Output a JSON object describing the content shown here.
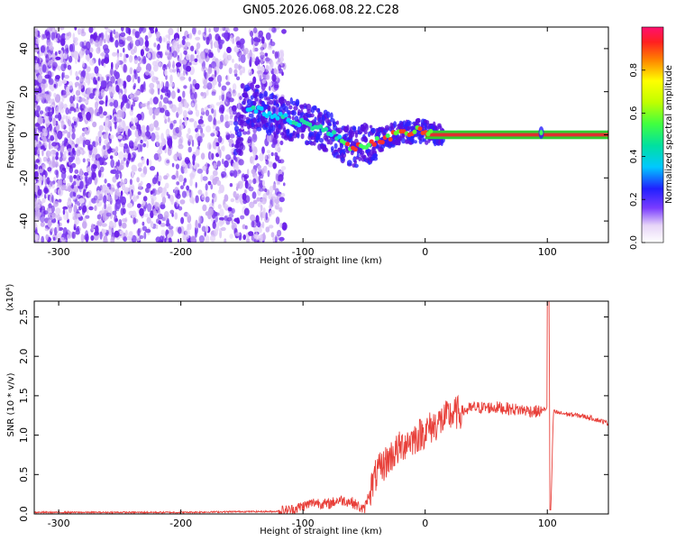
{
  "title": "GN05.2026.068.08.22.C28",
  "chart_data": [
    {
      "type": "heatmap",
      "xlabel": "Height of straight line (km)",
      "ylabel": "Frequency (Hz)",
      "xlim": [
        -320,
        150
      ],
      "ylim": [
        -50,
        50
      ],
      "xticks": [
        -300,
        -200,
        -100,
        0,
        100
      ],
      "yticks": [
        -40,
        -20,
        0,
        20,
        40
      ],
      "colorbar": {
        "label": "Normalized spectral amplitude",
        "range": [
          0,
          1
        ],
        "ticks": [
          0.0,
          0.2,
          0.4,
          0.6,
          0.8
        ]
      },
      "ridge": {
        "x": [
          -150,
          -130,
          -110,
          -90,
          -75,
          -62,
          -55,
          -45,
          -35,
          -25,
          -15,
          -5,
          0,
          10,
          30,
          60,
          90,
          95,
          100,
          150
        ],
        "y": [
          14,
          10,
          7,
          4,
          0,
          -5,
          -6,
          -4,
          -2,
          0,
          1,
          2,
          1,
          0,
          0,
          0,
          0,
          2,
          0,
          0
        ]
      }
    },
    {
      "type": "line",
      "xlabel": "Height of straight line (km)",
      "ylabel": "SNR (10 * v/v)",
      "y_multiplier": "(x10⁴)",
      "xlim": [
        -320,
        150
      ],
      "ylim": [
        0,
        2.7
      ],
      "xticks": [
        -300,
        -200,
        -100,
        0,
        100
      ],
      "yticks": [
        0.0,
        0.5,
        1.0,
        1.5,
        2.0,
        2.5
      ],
      "series": [
        {
          "color": "#e8403a",
          "x": [
            -320,
            -300,
            -250,
            -200,
            -150,
            -125,
            -110,
            -100,
            -90,
            -80,
            -70,
            -60,
            -50,
            -45,
            -40,
            -35,
            -30,
            -25,
            -20,
            -15,
            -10,
            -5,
            0,
            10,
            20,
            30,
            40,
            50,
            60,
            70,
            80,
            90,
            95,
            100,
            101,
            103,
            105,
            110,
            120,
            130,
            140,
            150
          ],
          "y": [
            0.02,
            0.02,
            0.02,
            0.02,
            0.03,
            0.03,
            0.05,
            0.1,
            0.15,
            0.12,
            0.18,
            0.15,
            0.05,
            0.3,
            0.5,
            0.6,
            0.7,
            0.78,
            0.85,
            0.92,
            0.95,
            1.0,
            1.05,
            1.15,
            1.25,
            1.3,
            1.35,
            1.35,
            1.35,
            1.33,
            1.32,
            1.3,
            1.3,
            1.35,
            2.7,
            0.1,
            1.3,
            1.28,
            1.26,
            1.24,
            1.2,
            1.15
          ]
        }
      ]
    }
  ]
}
